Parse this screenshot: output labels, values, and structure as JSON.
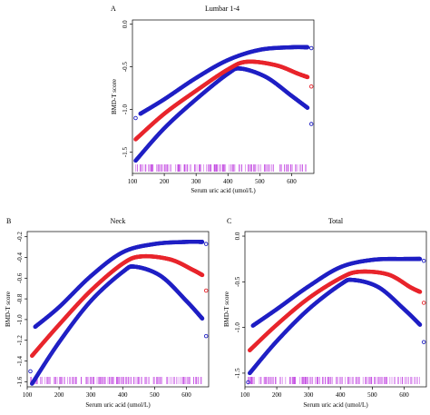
{
  "chart_data": [
    {
      "type": "line",
      "letter": "A",
      "title": "Lumbar 1-4",
      "xlabel": "Serum uric acid (umol/L)",
      "ylabel": "BMD-T score",
      "xlim": [
        100,
        670
      ],
      "ylim": [
        -1.75,
        0.05
      ],
      "xticks": [
        100,
        200,
        300,
        400,
        500,
        600
      ],
      "yticks": [
        0.0,
        -0.5,
        -1.0,
        -1.5
      ],
      "ytick_labels": [
        "0.0",
        "-0.5",
        "-1.0",
        "-1.5"
      ],
      "colors": {
        "ci": "#1f1fc4",
        "fit": "#e8252c",
        "rug": "#c040e0"
      },
      "x_range": [
        110,
        650
      ],
      "fit": {
        "points": [
          [
            110,
            -1.35
          ],
          [
            200,
            -1.05
          ],
          [
            300,
            -0.78
          ],
          [
            400,
            -0.53
          ],
          [
            460,
            -0.44
          ],
          [
            550,
            -0.48
          ],
          [
            620,
            -0.58
          ],
          [
            650,
            -0.62
          ]
        ]
      },
      "upper": {
        "points": [
          [
            125,
            -1.05
          ],
          [
            200,
            -0.88
          ],
          [
            300,
            -0.63
          ],
          [
            400,
            -0.42
          ],
          [
            500,
            -0.3
          ],
          [
            600,
            -0.27
          ],
          [
            650,
            -0.27
          ]
        ]
      },
      "lower": {
        "points": [
          [
            110,
            -1.6
          ],
          [
            200,
            -1.22
          ],
          [
            300,
            -0.88
          ],
          [
            400,
            -0.58
          ],
          [
            440,
            -0.52
          ],
          [
            520,
            -0.62
          ],
          [
            600,
            -0.84
          ],
          [
            650,
            -0.98
          ]
        ]
      },
      "outliers": [
        {
          "x": 110,
          "y": -1.1,
          "color": "#1f1fc4"
        },
        {
          "x": 662,
          "y": -0.28,
          "color": "#1f1fc4"
        },
        {
          "x": 662,
          "y": -0.73,
          "color": "#e8252c"
        },
        {
          "x": 662,
          "y": -1.17,
          "color": "#1f1fc4"
        }
      ]
    },
    {
      "type": "line",
      "letter": "B",
      "title": "Neck",
      "xlabel": "Serum uric acid (umol/L)",
      "ylabel": "BMD-T score",
      "xlim": [
        100,
        670
      ],
      "ylim": [
        -1.65,
        -0.15
      ],
      "xticks": [
        100,
        200,
        300,
        400,
        500,
        600
      ],
      "yticks": [
        -0.2,
        -0.4,
        -0.6,
        -0.8,
        -1.0,
        -1.2,
        -1.4,
        -1.6
      ],
      "ytick_labels": [
        "-0.2",
        "-0.4",
        "-0.6",
        "-0.8",
        "-1.0",
        "-1.2",
        "-1.4",
        "-1.6"
      ],
      "colors": {
        "ci": "#1f1fc4",
        "fit": "#e8252c",
        "rug": "#c040e0"
      },
      "x_range": [
        110,
        650
      ],
      "fit": {
        "points": [
          [
            115,
            -1.35
          ],
          [
            200,
            -1.05
          ],
          [
            300,
            -0.72
          ],
          [
            400,
            -0.46
          ],
          [
            460,
            -0.39
          ],
          [
            550,
            -0.42
          ],
          [
            620,
            -0.52
          ],
          [
            650,
            -0.57
          ]
        ]
      },
      "upper": {
        "points": [
          [
            125,
            -1.07
          ],
          [
            200,
            -0.88
          ],
          [
            300,
            -0.58
          ],
          [
            400,
            -0.35
          ],
          [
            500,
            -0.27
          ],
          [
            600,
            -0.25
          ],
          [
            650,
            -0.25
          ]
        ]
      },
      "lower": {
        "points": [
          [
            115,
            -1.62
          ],
          [
            200,
            -1.22
          ],
          [
            300,
            -0.82
          ],
          [
            400,
            -0.54
          ],
          [
            440,
            -0.49
          ],
          [
            520,
            -0.58
          ],
          [
            600,
            -0.82
          ],
          [
            650,
            -0.99
          ]
        ]
      },
      "outliers": [
        {
          "x": 110,
          "y": -1.5,
          "color": "#1f1fc4"
        },
        {
          "x": 662,
          "y": -0.27,
          "color": "#1f1fc4"
        },
        {
          "x": 662,
          "y": -0.72,
          "color": "#e8252c"
        },
        {
          "x": 662,
          "y": -1.16,
          "color": "#1f1fc4"
        }
      ]
    },
    {
      "type": "line",
      "letter": "C",
      "title": "Total",
      "xlabel": "Serum uric acid (umol/L)",
      "ylabel": "BMD-T score",
      "xlim": [
        100,
        670
      ],
      "ylim": [
        -1.65,
        0.05
      ],
      "xticks": [
        100,
        200,
        300,
        400,
        500,
        600
      ],
      "yticks": [
        0.0,
        -0.5,
        -1.0,
        -1.5
      ],
      "ytick_labels": [
        "0.0",
        "-0.5",
        "-1.0",
        "-1.5"
      ],
      "colors": {
        "ci": "#1f1fc4",
        "fit": "#e8252c",
        "rug": "#c040e0"
      },
      "x_range": [
        110,
        650
      ],
      "fit": {
        "points": [
          [
            115,
            -1.25
          ],
          [
            200,
            -0.97
          ],
          [
            300,
            -0.68
          ],
          [
            400,
            -0.46
          ],
          [
            460,
            -0.39
          ],
          [
            550,
            -0.42
          ],
          [
            620,
            -0.56
          ],
          [
            650,
            -0.61
          ]
        ]
      },
      "upper": {
        "points": [
          [
            125,
            -0.98
          ],
          [
            200,
            -0.8
          ],
          [
            300,
            -0.55
          ],
          [
            400,
            -0.34
          ],
          [
            500,
            -0.26
          ],
          [
            600,
            -0.25
          ],
          [
            650,
            -0.25
          ]
        ]
      },
      "lower": {
        "points": [
          [
            115,
            -1.5
          ],
          [
            200,
            -1.15
          ],
          [
            300,
            -0.8
          ],
          [
            400,
            -0.53
          ],
          [
            440,
            -0.48
          ],
          [
            520,
            -0.56
          ],
          [
            600,
            -0.8
          ],
          [
            650,
            -0.97
          ]
        ]
      },
      "outliers": [
        {
          "x": 110,
          "y": -1.6,
          "color": "#1f1fc4"
        },
        {
          "x": 662,
          "y": -0.27,
          "color": "#1f1fc4"
        },
        {
          "x": 662,
          "y": -0.73,
          "color": "#e8252c"
        },
        {
          "x": 662,
          "y": -1.16,
          "color": "#1f1fc4"
        }
      ]
    }
  ]
}
